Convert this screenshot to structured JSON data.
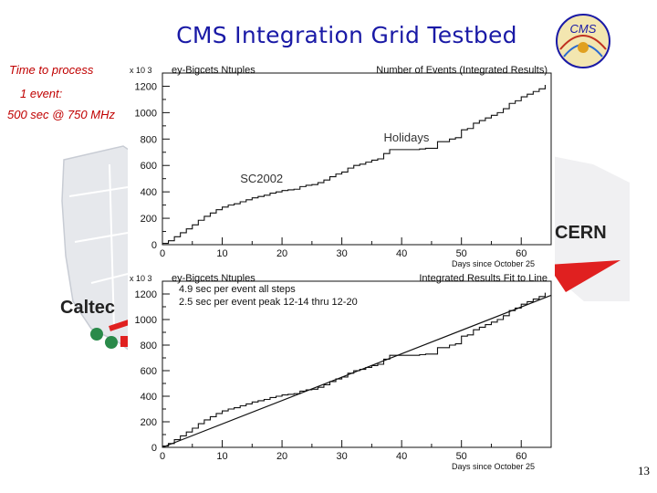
{
  "slide": {
    "title": "CMS Integration Grid Testbed",
    "notes": [
      "Time to process",
      "1 event:",
      "500 sec @ 750 MHz"
    ],
    "page_number": "13",
    "map_labels": {
      "caltech": "Caltec",
      "cern": "CERN"
    },
    "logo_text": "CMS",
    "colors": {
      "title": "#1a1aa6",
      "notes": "#c00000",
      "line": "#111111",
      "cern_arrow": "#e02020",
      "marker": "#2a8a4a"
    }
  },
  "chart_data": [
    {
      "type": "line",
      "title": "ey-Bigcets Ntuples",
      "subtitle": "Number of Events (Integrated Results)",
      "xlabel": "Days since October 25",
      "ylabel": "",
      "y_multiplier": "x 10 3",
      "xlim": [
        0,
        65
      ],
      "ylim": [
        0,
        1300
      ],
      "xticks": [
        0,
        10,
        20,
        30,
        40,
        50,
        60
      ],
      "yticks": [
        0,
        200,
        400,
        600,
        800,
        1000,
        1200
      ],
      "annotations": [
        {
          "text": "Holidays",
          "x": 37,
          "y": 780
        },
        {
          "text": "SC2002",
          "x": 13,
          "y": 470
        }
      ],
      "series": [
        {
          "points": [
            [
              0,
              10
            ],
            [
              1,
              30
            ],
            [
              2,
              60
            ],
            [
              3,
              90
            ],
            [
              4,
              120
            ],
            [
              5,
              150
            ],
            [
              6,
              185
            ],
            [
              7,
              215
            ],
            [
              8,
              240
            ],
            [
              9,
              265
            ],
            [
              10,
              285
            ],
            [
              11,
              300
            ],
            [
              12,
              310
            ],
            [
              13,
              325
            ],
            [
              14,
              340
            ],
            [
              15,
              355
            ],
            [
              16,
              365
            ],
            [
              17,
              375
            ],
            [
              18,
              390
            ],
            [
              19,
              400
            ],
            [
              20,
              410
            ],
            [
              21,
              415
            ],
            [
              22,
              420
            ],
            [
              23,
              440
            ],
            [
              24,
              450
            ],
            [
              25,
              455
            ],
            [
              26,
              470
            ],
            [
              27,
              490
            ],
            [
              28,
              515
            ],
            [
              29,
              535
            ],
            [
              30,
              550
            ],
            [
              31,
              580
            ],
            [
              32,
              600
            ],
            [
              33,
              610
            ],
            [
              34,
              625
            ],
            [
              35,
              640
            ],
            [
              36,
              650
            ],
            [
              37,
              690
            ],
            [
              38,
              720
            ],
            [
              39,
              720
            ],
            [
              40,
              720
            ],
            [
              41,
              720
            ],
            [
              42,
              720
            ],
            [
              43,
              725
            ],
            [
              44,
              730
            ],
            [
              45,
              730
            ],
            [
              46,
              780
            ],
            [
              47,
              780
            ],
            [
              48,
              800
            ],
            [
              49,
              810
            ],
            [
              50,
              870
            ],
            [
              51,
              880
            ],
            [
              52,
              920
            ],
            [
              53,
              940
            ],
            [
              54,
              960
            ],
            [
              55,
              980
            ],
            [
              56,
              1000
            ],
            [
              57,
              1030
            ],
            [
              58,
              1070
            ],
            [
              59,
              1090
            ],
            [
              60,
              1120
            ],
            [
              61,
              1140
            ],
            [
              62,
              1160
            ],
            [
              63,
              1180
            ],
            [
              64,
              1210
            ]
          ]
        }
      ]
    },
    {
      "type": "line",
      "title": "ey-Bigcets Ntuples",
      "subtitle": "Integrated Results Fit to Line",
      "xlabel": "Days since October 25",
      "ylabel": "",
      "y_multiplier": "x 10 3",
      "xlim": [
        0,
        65
      ],
      "ylim": [
        0,
        1300
      ],
      "xticks": [
        0,
        10,
        20,
        30,
        40,
        50,
        60
      ],
      "yticks": [
        0,
        200,
        400,
        600,
        800,
        1000,
        1200
      ],
      "legend": [
        "4.9 sec per event all steps",
        "2.5 sec per event peak 12-14 thru 12-20"
      ],
      "series": [
        {
          "points": [
            [
              0,
              10
            ],
            [
              1,
              30
            ],
            [
              2,
              60
            ],
            [
              3,
              90
            ],
            [
              4,
              120
            ],
            [
              5,
              150
            ],
            [
              6,
              185
            ],
            [
              7,
              215
            ],
            [
              8,
              240
            ],
            [
              9,
              265
            ],
            [
              10,
              285
            ],
            [
              11,
              300
            ],
            [
              12,
              310
            ],
            [
              13,
              325
            ],
            [
              14,
              340
            ],
            [
              15,
              355
            ],
            [
              16,
              365
            ],
            [
              17,
              375
            ],
            [
              18,
              390
            ],
            [
              19,
              400
            ],
            [
              20,
              410
            ],
            [
              21,
              415
            ],
            [
              22,
              420
            ],
            [
              23,
              440
            ],
            [
              24,
              450
            ],
            [
              25,
              455
            ],
            [
              26,
              470
            ],
            [
              27,
              490
            ],
            [
              28,
              515
            ],
            [
              29,
              535
            ],
            [
              30,
              550
            ],
            [
              31,
              580
            ],
            [
              32,
              600
            ],
            [
              33,
              610
            ],
            [
              34,
              625
            ],
            [
              35,
              640
            ],
            [
              36,
              650
            ],
            [
              37,
              690
            ],
            [
              38,
              720
            ],
            [
              39,
              720
            ],
            [
              40,
              720
            ],
            [
              41,
              720
            ],
            [
              42,
              720
            ],
            [
              43,
              725
            ],
            [
              44,
              730
            ],
            [
              45,
              730
            ],
            [
              46,
              780
            ],
            [
              47,
              780
            ],
            [
              48,
              800
            ],
            [
              49,
              810
            ],
            [
              50,
              870
            ],
            [
              51,
              880
            ],
            [
              52,
              920
            ],
            [
              53,
              940
            ],
            [
              54,
              960
            ],
            [
              55,
              980
            ],
            [
              56,
              1000
            ],
            [
              57,
              1030
            ],
            [
              58,
              1070
            ],
            [
              59,
              1090
            ],
            [
              60,
              1120
            ],
            [
              61,
              1140
            ],
            [
              62,
              1160
            ],
            [
              63,
              1180
            ],
            [
              64,
              1210
            ]
          ]
        },
        {
          "fit": true,
          "points": [
            [
              0,
              0
            ],
            [
              65,
              1190
            ]
          ]
        }
      ]
    }
  ]
}
